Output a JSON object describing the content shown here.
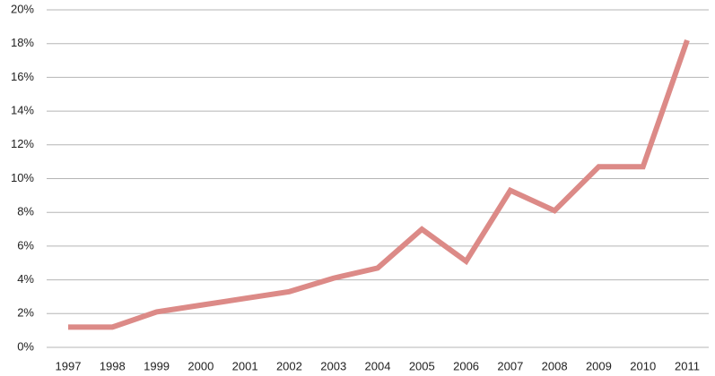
{
  "chart_data": {
    "type": "line",
    "categories": [
      "1997",
      "1998",
      "1999",
      "2000",
      "2001",
      "2002",
      "2003",
      "2004",
      "2005",
      "2006",
      "2007",
      "2008",
      "2009",
      "2010",
      "2011"
    ],
    "series": [
      {
        "color": "#dc8a87",
        "values": [
          1.2,
          1.2,
          2.1,
          2.5,
          2.9,
          3.3,
          4.1,
          4.7,
          7.0,
          5.1,
          9.3,
          8.1,
          10.7,
          10.7,
          18.2
        ]
      }
    ],
    "ylim": [
      0,
      20
    ],
    "yticks": [
      {
        "value": 0,
        "label": "0%"
      },
      {
        "value": 2,
        "label": "2%"
      },
      {
        "value": 4,
        "label": "4%"
      },
      {
        "value": 6,
        "label": "6%"
      },
      {
        "value": 8,
        "label": "8%"
      },
      {
        "value": 10,
        "label": "10%"
      },
      {
        "value": 12,
        "label": "12%"
      },
      {
        "value": 14,
        "label": "14%"
      },
      {
        "value": 16,
        "label": "16%"
      },
      {
        "value": 18,
        "label": "18%"
      },
      {
        "value": 20,
        "label": "20%"
      }
    ],
    "grid": true
  }
}
